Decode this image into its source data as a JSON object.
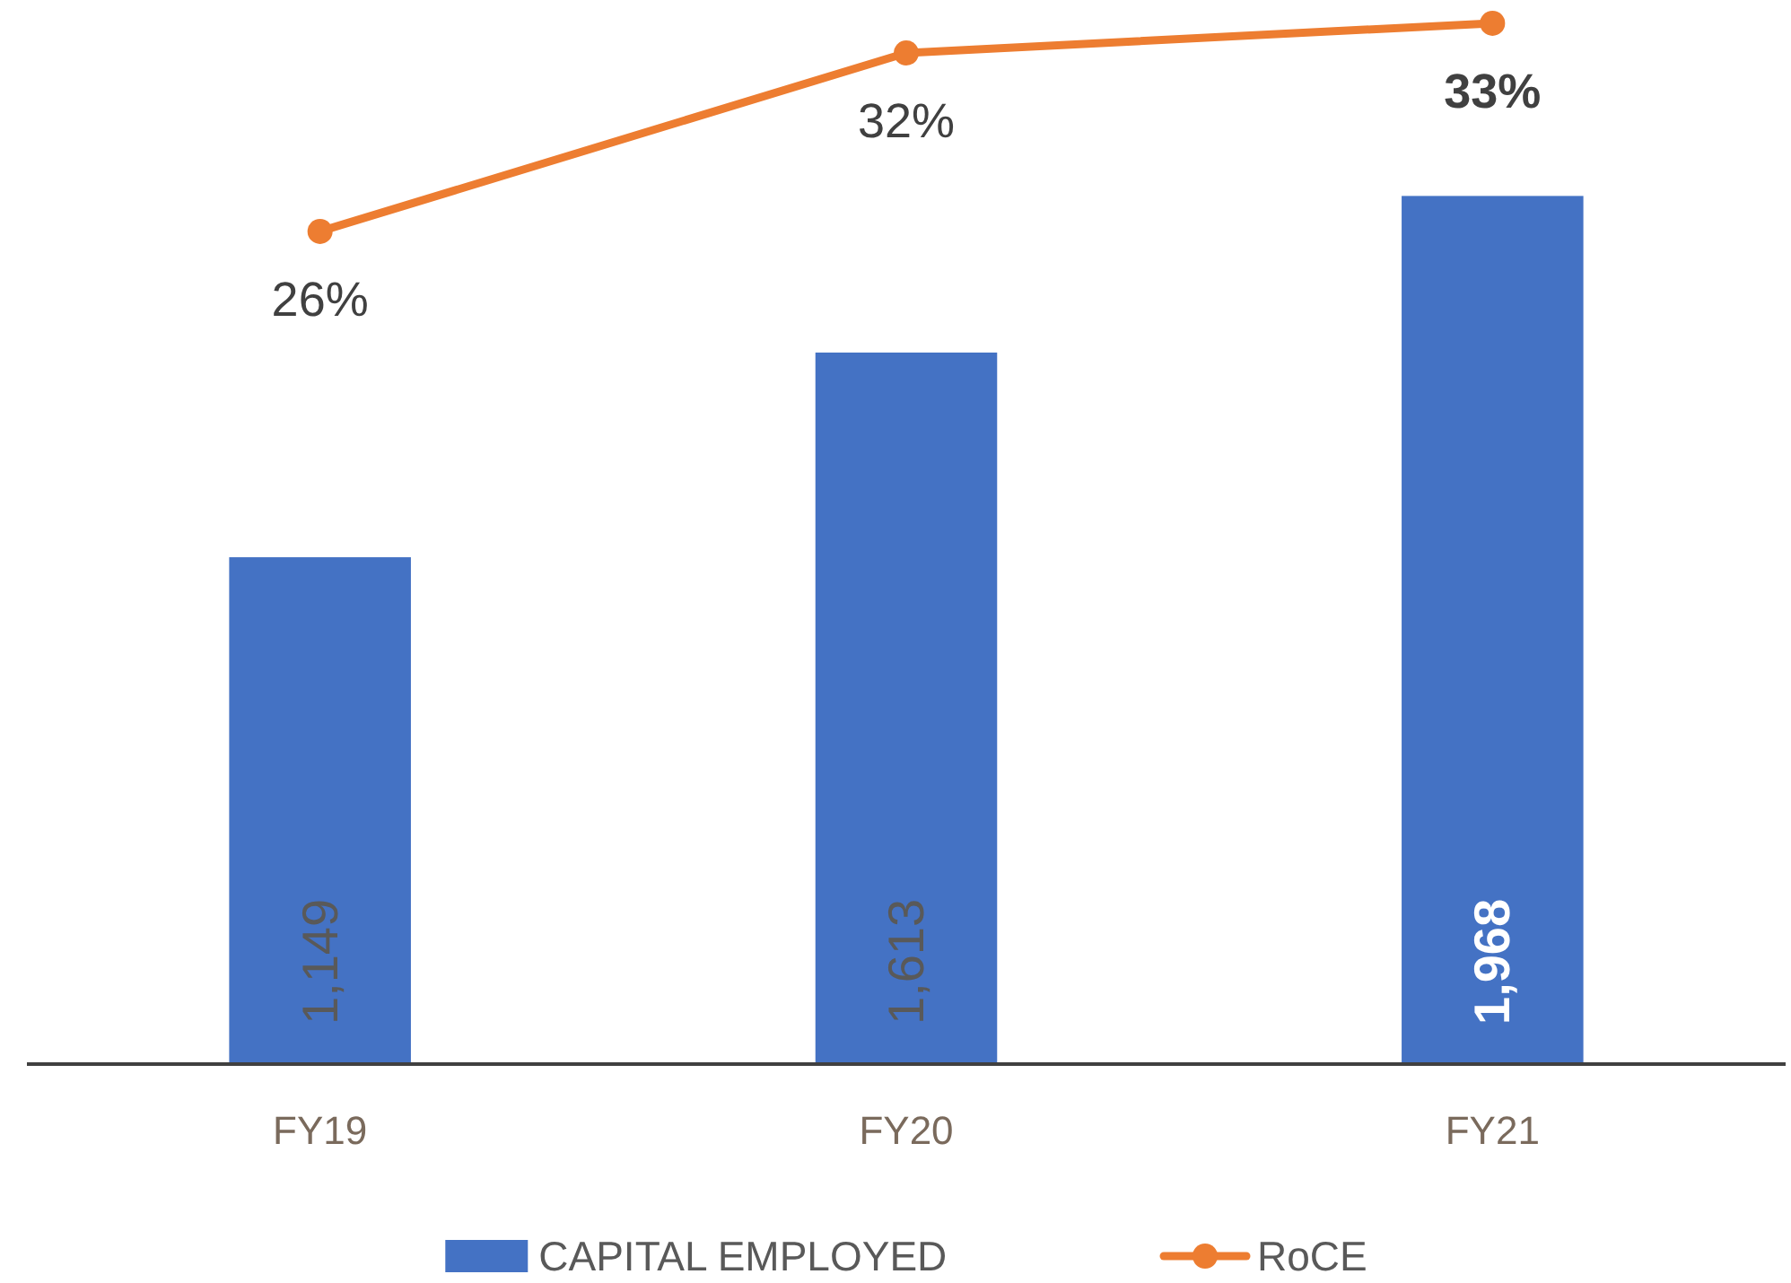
{
  "chart_data": {
    "type": "bar",
    "categories": [
      "FY19",
      "FY20",
      "FY21"
    ],
    "series": [
      {
        "name": "CAPITAL EMPLOYED",
        "color": "#4472c4",
        "values": [
          1149,
          1613,
          1968
        ],
        "value_labels": [
          "1,149",
          "1,613",
          "1,968"
        ]
      },
      {
        "name": "RoCE",
        "type": "line",
        "axis": "y2",
        "color": "#ed7d31",
        "values": [
          26,
          32,
          33
        ],
        "value_labels": [
          "26%",
          "32%",
          "33%"
        ]
      }
    ],
    "ylim": [
      0,
      2400
    ],
    "y2lim": [
      -2,
      33.6
    ],
    "tick_labels": "x",
    "legend": "bottom",
    "marker": "circle"
  }
}
